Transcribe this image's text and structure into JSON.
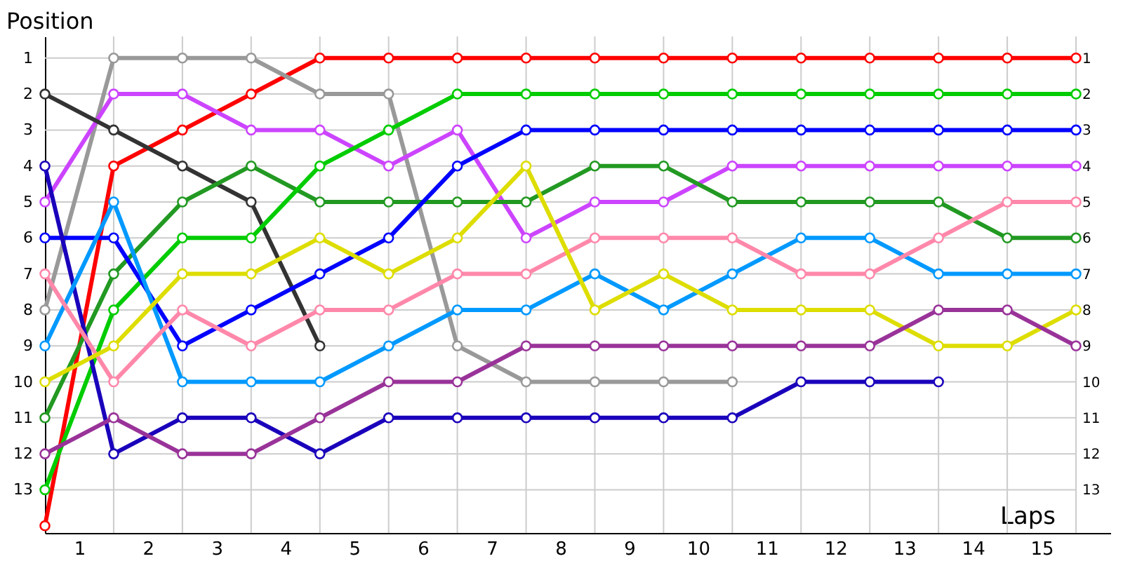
{
  "chart_data": {
    "type": "line",
    "xlabel": "Laps",
    "ylabel": "Position",
    "x": [
      0,
      1,
      2,
      3,
      4,
      5,
      6,
      7,
      8,
      9,
      10,
      11,
      12,
      13,
      14,
      15
    ],
    "series": [
      {
        "color": "#ff0000",
        "values": [
          14,
          4,
          3,
          2,
          1,
          1,
          1,
          1,
          1,
          1,
          1,
          1,
          1,
          1,
          1,
          1
        ]
      },
      {
        "color": "#999999",
        "values": [
          8,
          1,
          1,
          1,
          2,
          2,
          9,
          10,
          10,
          10,
          10,
          null,
          null,
          null,
          null,
          null
        ]
      },
      {
        "color": "#cc44ff",
        "values": [
          5,
          2,
          2,
          3,
          3,
          4,
          3,
          6,
          5,
          5,
          4,
          4,
          4,
          4,
          4,
          4
        ]
      },
      {
        "color": "#333333",
        "values": [
          2,
          3,
          4,
          5,
          9,
          null,
          null,
          null,
          null,
          null,
          null,
          null,
          null,
          null,
          null,
          null
        ]
      },
      {
        "color": "#229922",
        "values": [
          11,
          7,
          5,
          4,
          5,
          5,
          5,
          5,
          4,
          4,
          5,
          5,
          5,
          5,
          6,
          6
        ]
      },
      {
        "color": "#00cc00",
        "values": [
          13,
          8,
          6,
          6,
          4,
          3,
          2,
          2,
          2,
          2,
          2,
          2,
          2,
          2,
          2,
          2
        ]
      },
      {
        "color": "#0000ff",
        "values": [
          6,
          6,
          9,
          8,
          7,
          6,
          4,
          3,
          3,
          3,
          3,
          3,
          3,
          3,
          3,
          3
        ]
      },
      {
        "color": "#1a00bb",
        "values": [
          4,
          12,
          11,
          11,
          12,
          11,
          11,
          11,
          11,
          11,
          11,
          10,
          10,
          10,
          null,
          null
        ]
      },
      {
        "color": "#0099ff",
        "values": [
          9,
          5,
          10,
          10,
          10,
          9,
          8,
          8,
          7,
          8,
          7,
          6,
          6,
          7,
          7,
          7
        ]
      },
      {
        "color": "#ff88aa",
        "values": [
          7,
          10,
          8,
          9,
          8,
          8,
          7,
          7,
          6,
          6,
          6,
          7,
          7,
          6,
          5,
          5
        ]
      },
      {
        "color": "#dddd00",
        "values": [
          10,
          9,
          7,
          7,
          6,
          7,
          6,
          4,
          8,
          7,
          8,
          8,
          8,
          9,
          9,
          8
        ]
      },
      {
        "color": "#993399",
        "values": [
          12,
          11,
          12,
          12,
          11,
          10,
          10,
          9,
          9,
          9,
          9,
          9,
          9,
          8,
          8,
          9
        ]
      }
    ],
    "xlim": [
      0,
      15.5
    ],
    "xticks": [
      {
        "value": 0.5,
        "label": "1"
      },
      {
        "value": 1.5,
        "label": "2"
      },
      {
        "value": 2.5,
        "label": "3"
      },
      {
        "value": 3.5,
        "label": "4"
      },
      {
        "value": 4.5,
        "label": "5"
      },
      {
        "value": 5.5,
        "label": "6"
      },
      {
        "value": 6.5,
        "label": "7"
      },
      {
        "value": 7.5,
        "label": "8"
      },
      {
        "value": 8.5,
        "label": "9"
      },
      {
        "value": 9.5,
        "label": "10"
      },
      {
        "value": 10.5,
        "label": "11"
      },
      {
        "value": 11.5,
        "label": "12"
      },
      {
        "value": 12.5,
        "label": "13"
      },
      {
        "value": 13.5,
        "label": "14"
      },
      {
        "value": 14.5,
        "label": "15"
      },
      {
        "value": 1,
        "label": null
      },
      {
        "value": 2,
        "label": null
      },
      {
        "value": 3,
        "label": null
      },
      {
        "value": 4,
        "label": null
      },
      {
        "value": 5,
        "label": null
      },
      {
        "value": 6,
        "label": null
      },
      {
        "value": 7,
        "label": null
      },
      {
        "value": 8,
        "label": null
      },
      {
        "value": 9,
        "label": null
      },
      {
        "value": 10,
        "label": null
      },
      {
        "value": 11,
        "label": null
      },
      {
        "value": 12,
        "label": null
      },
      {
        "value": 13,
        "label": null
      },
      {
        "value": 14,
        "label": null
      },
      {
        "value": 15,
        "label": null
      }
    ],
    "ylim": [
      14.2,
      0.4
    ],
    "yticks": [
      1,
      2,
      3,
      4,
      5,
      6,
      7,
      8,
      9,
      10,
      11,
      12,
      13
    ],
    "y2lim": [
      14.2,
      0.4
    ],
    "y2ticks": [
      1,
      2,
      3,
      4,
      5,
      6,
      7,
      8,
      9,
      10,
      11,
      12,
      13
    ],
    "grid": true,
    "marker": "circle",
    "line_style": "solid"
  }
}
